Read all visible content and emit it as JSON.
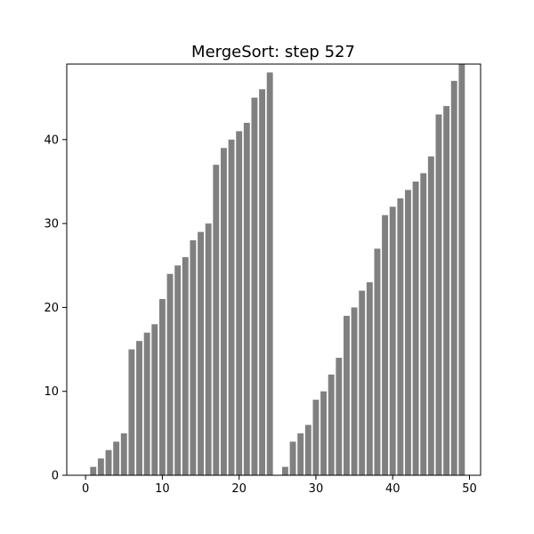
{
  "chart_data": {
    "type": "bar",
    "title": "MergeSort: step 527",
    "xlabel": "",
    "ylabel": "",
    "x": [
      0,
      1,
      2,
      3,
      4,
      5,
      6,
      7,
      8,
      9,
      10,
      11,
      12,
      13,
      14,
      15,
      16,
      17,
      18,
      19,
      20,
      21,
      22,
      23,
      24,
      25,
      26,
      27,
      28,
      29,
      30,
      31,
      32,
      33,
      34,
      35,
      36,
      37,
      38,
      39,
      40,
      41,
      42,
      43,
      44,
      45,
      46,
      47,
      48,
      49
    ],
    "values": [
      0,
      1,
      2,
      3,
      4,
      5,
      15,
      16,
      17,
      18,
      21,
      24,
      25,
      26,
      28,
      29,
      30,
      37,
      39,
      40,
      41,
      42,
      45,
      46,
      48,
      0,
      1,
      4,
      5,
      6,
      9,
      10,
      12,
      14,
      19,
      20,
      22,
      23,
      27,
      31,
      32,
      33,
      34,
      35,
      36,
      38,
      43,
      44,
      47,
      49
    ],
    "xlim": [
      -2.45,
      51.45
    ],
    "ylim": [
      0,
      49
    ],
    "xticks": [
      0,
      10,
      20,
      30,
      40,
      50
    ],
    "yticks": [
      0,
      10,
      20,
      30,
      40
    ],
    "bar_color": "#808080",
    "grid": false,
    "legend": "none"
  }
}
